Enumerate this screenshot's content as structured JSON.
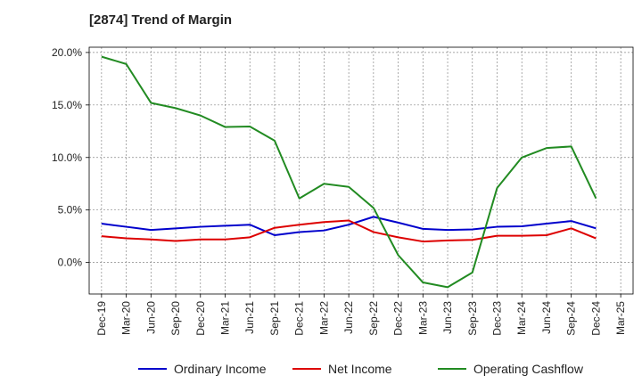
{
  "chart_data": {
    "type": "line",
    "title": "[2874]  Trend of Margin",
    "xlabel": "",
    "ylabel": "",
    "x_ticks": [
      "Dec-19",
      "Mar-20",
      "Jun-20",
      "Sep-20",
      "Dec-20",
      "Mar-21",
      "Jun-21",
      "Sep-21",
      "Dec-21",
      "Mar-22",
      "Jun-22",
      "Sep-22",
      "Dec-22",
      "Mar-23",
      "Jun-23",
      "Sep-23",
      "Dec-23",
      "Mar-24",
      "Jun-24",
      "Sep-24",
      "Dec-24",
      "Mar-25"
    ],
    "x": [
      "Dec-19",
      "Mar-20",
      "Jun-20",
      "Sep-20",
      "Dec-20",
      "Mar-21",
      "Jun-21",
      "Sep-21",
      "Dec-21",
      "Mar-22",
      "Jun-22",
      "Sep-22",
      "Dec-22",
      "Mar-23",
      "Jun-23",
      "Sep-23",
      "Dec-23",
      "Mar-24",
      "Jun-24",
      "Sep-24",
      "Dec-24"
    ],
    "y_ticks": [
      0,
      5,
      10,
      15,
      20
    ],
    "y_tick_labels": [
      "0.0%",
      "5.0%",
      "10.0%",
      "15.0%",
      "20.0%"
    ],
    "ylim": [
      -3,
      20.5
    ],
    "grid": true,
    "legend_position": "bottom",
    "series": [
      {
        "name": "Ordinary Income",
        "color": "#0000cc",
        "values": [
          3.7,
          3.4,
          3.1,
          3.25,
          3.4,
          3.5,
          3.6,
          2.6,
          2.9,
          3.05,
          3.6,
          4.35,
          3.8,
          3.2,
          3.1,
          3.15,
          3.4,
          3.45,
          3.7,
          3.95,
          3.25
        ]
      },
      {
        "name": "Net Income",
        "color": "#dd0000",
        "values": [
          2.5,
          2.3,
          2.2,
          2.05,
          2.2,
          2.2,
          2.4,
          3.3,
          3.6,
          3.85,
          4.0,
          2.9,
          2.4,
          2.0,
          2.1,
          2.15,
          2.55,
          2.55,
          2.6,
          3.25,
          2.3
        ]
      },
      {
        "name": "Operating Cashflow",
        "color": "#228b22",
        "values": [
          19.6,
          18.9,
          15.2,
          14.7,
          14.0,
          12.9,
          12.95,
          11.6,
          6.1,
          7.5,
          7.2,
          5.2,
          0.7,
          -1.9,
          -2.35,
          -0.95,
          7.1,
          10.0,
          10.9,
          11.05,
          6.1
        ]
      }
    ]
  }
}
